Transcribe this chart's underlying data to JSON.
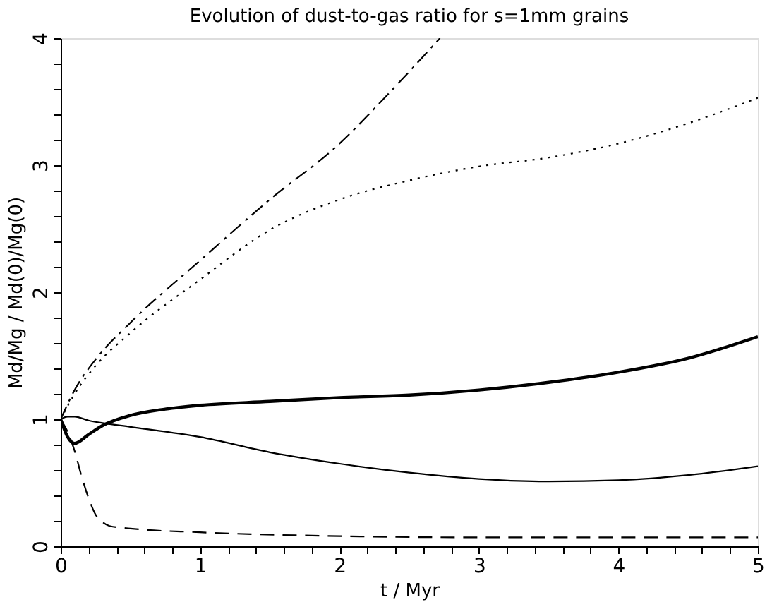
{
  "chart_data": {
    "type": "line",
    "title": "Evolution of dust-to-gas ratio for s=1mm grains",
    "xlabel": "t / Myr",
    "ylabel": "Md/Mg  /  Md(0)/Mg(0)",
    "xlim": [
      0,
      5
    ],
    "ylim": [
      0,
      4
    ],
    "xticks": [
      0,
      {
        "value": 0.2,
        "label": null
      },
      {
        "value": 0.4,
        "label": null
      },
      {
        "value": 0.6,
        "label": null
      },
      {
        "value": 0.8,
        "label": null
      },
      1,
      {
        "value": 1.2,
        "label": null
      },
      {
        "value": 1.4,
        "label": null
      },
      {
        "value": 1.6,
        "label": null
      },
      {
        "value": 1.8,
        "label": null
      },
      2,
      {
        "value": 2.2,
        "label": null
      },
      {
        "value": 2.4,
        "label": null
      },
      {
        "value": 2.6,
        "label": null
      },
      {
        "value": 2.8,
        "label": null
      },
      3,
      {
        "value": 3.2,
        "label": null
      },
      {
        "value": 3.4,
        "label": null
      },
      {
        "value": 3.6,
        "label": null
      },
      {
        "value": 3.8,
        "label": null
      },
      4,
      {
        "value": 4.2,
        "label": null
      },
      {
        "value": 4.4,
        "label": null
      },
      {
        "value": 4.6,
        "label": null
      },
      {
        "value": 4.8,
        "label": null
      },
      5
    ],
    "yticks": [
      0,
      {
        "value": 0.2,
        "label": null
      },
      {
        "value": 0.4,
        "label": null
      },
      {
        "value": 0.6,
        "label": null
      },
      {
        "value": 0.8,
        "label": null
      },
      1,
      {
        "value": 1.2,
        "label": null
      },
      {
        "value": 1.4,
        "label": null
      },
      {
        "value": 1.6,
        "label": null
      },
      {
        "value": 1.8,
        "label": null
      },
      2,
      {
        "value": 2.2,
        "label": null
      },
      {
        "value": 2.4,
        "label": null
      },
      {
        "value": 2.6,
        "label": null
      },
      {
        "value": 2.8,
        "label": null
      },
      3,
      {
        "value": 3.2,
        "label": null
      },
      {
        "value": 3.4,
        "label": null
      },
      {
        "value": 3.6,
        "label": null
      },
      {
        "value": 3.8,
        "label": null
      },
      4
    ],
    "grid": false,
    "series": [
      {
        "color": "#000000",
        "line_style": "solid",
        "x": [
          0,
          0.05,
          0.1,
          0.2,
          0.3,
          0.5,
          0.75,
          1,
          1.5,
          2,
          2.5,
          3,
          3.5,
          4,
          4.5,
          5
        ],
        "values": [
          1,
          0.86,
          0.81,
          0.88,
          0.95,
          1.03,
          1.08,
          1.11,
          1.14,
          1.17,
          1.19,
          1.23,
          1.29,
          1.37,
          1.48,
          1.65
        ]
      },
      {
        "color": "#000000",
        "line_style": "solid",
        "x": [
          0,
          0.05,
          0.1,
          0.2,
          0.3,
          0.5,
          1,
          1.5,
          2,
          2.5,
          3,
          3.5,
          4,
          4.5,
          5
        ],
        "values": [
          1,
          1.02,
          1.02,
          0.99,
          0.97,
          0.94,
          0.86,
          0.74,
          0.65,
          0.58,
          0.53,
          0.51,
          0.52,
          0.56,
          0.63
        ]
      },
      {
        "color": "#000000",
        "line_style": "dashed",
        "x": [
          0,
          0.05,
          0.1,
          0.15,
          0.2,
          0.25,
          0.3,
          0.35,
          0.5,
          1,
          2,
          3,
          4,
          5
        ],
        "values": [
          1,
          0.9,
          0.75,
          0.55,
          0.38,
          0.25,
          0.19,
          0.16,
          0.14,
          0.11,
          0.08,
          0.07,
          0.07,
          0.07
        ]
      },
      {
        "color": "#000000",
        "line_style": "dotted",
        "x": [
          0,
          0.1,
          0.25,
          0.5,
          1,
          1.5,
          2,
          2.5,
          3,
          3.5,
          4,
          4.5,
          5
        ],
        "values": [
          1,
          1.2,
          1.42,
          1.68,
          2.1,
          2.49,
          2.73,
          2.88,
          2.99,
          3.06,
          3.17,
          3.33,
          3.53
        ]
      },
      {
        "color": "#000000",
        "line_style": "dashdot",
        "x": [
          0,
          0.1,
          0.25,
          0.5,
          1,
          1.5,
          2,
          2.34,
          2.72
        ],
        "values": [
          1,
          1.23,
          1.47,
          1.76,
          2.25,
          2.73,
          3.17,
          3.55,
          4.0
        ]
      }
    ]
  }
}
